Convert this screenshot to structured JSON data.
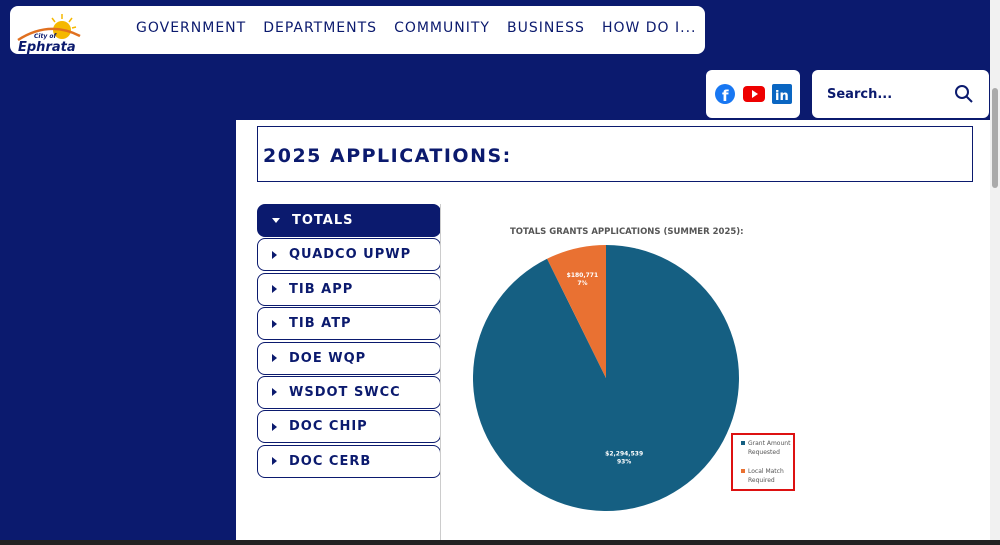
{
  "header": {
    "logo_text": "City of Ephrata",
    "nav": [
      "GOVERNMENT",
      "DEPARTMENTS",
      "COMMUNITY",
      "BUSINESS",
      "HOW DO I..."
    ],
    "search_placeholder": "Search..."
  },
  "page": {
    "title": "2025 APPLICATIONS:"
  },
  "tabs": [
    {
      "label": "TOTALS",
      "active": true
    },
    {
      "label": "QUADCO UPWP"
    },
    {
      "label": "TIB APP"
    },
    {
      "label": "TIB ATP"
    },
    {
      "label": "DOE WQP"
    },
    {
      "label": "WSDOT SWCC"
    },
    {
      "label": "DOC CHIP"
    },
    {
      "label": "DOC CERB"
    }
  ],
  "chart_data": {
    "type": "pie",
    "title": "TOTALS GRANTS APPLICATIONS (SUMMER 2025):",
    "slices": [
      {
        "label": "Grant Amount Requested",
        "value": 2294539,
        "display": "$2,294,539",
        "pct": "93%",
        "color": "#155f82"
      },
      {
        "label": "Local Match Required",
        "value": 180771,
        "display": "$180,771",
        "pct": "7%",
        "color": "#e97132"
      }
    ],
    "legend_position": "bottom-right"
  }
}
